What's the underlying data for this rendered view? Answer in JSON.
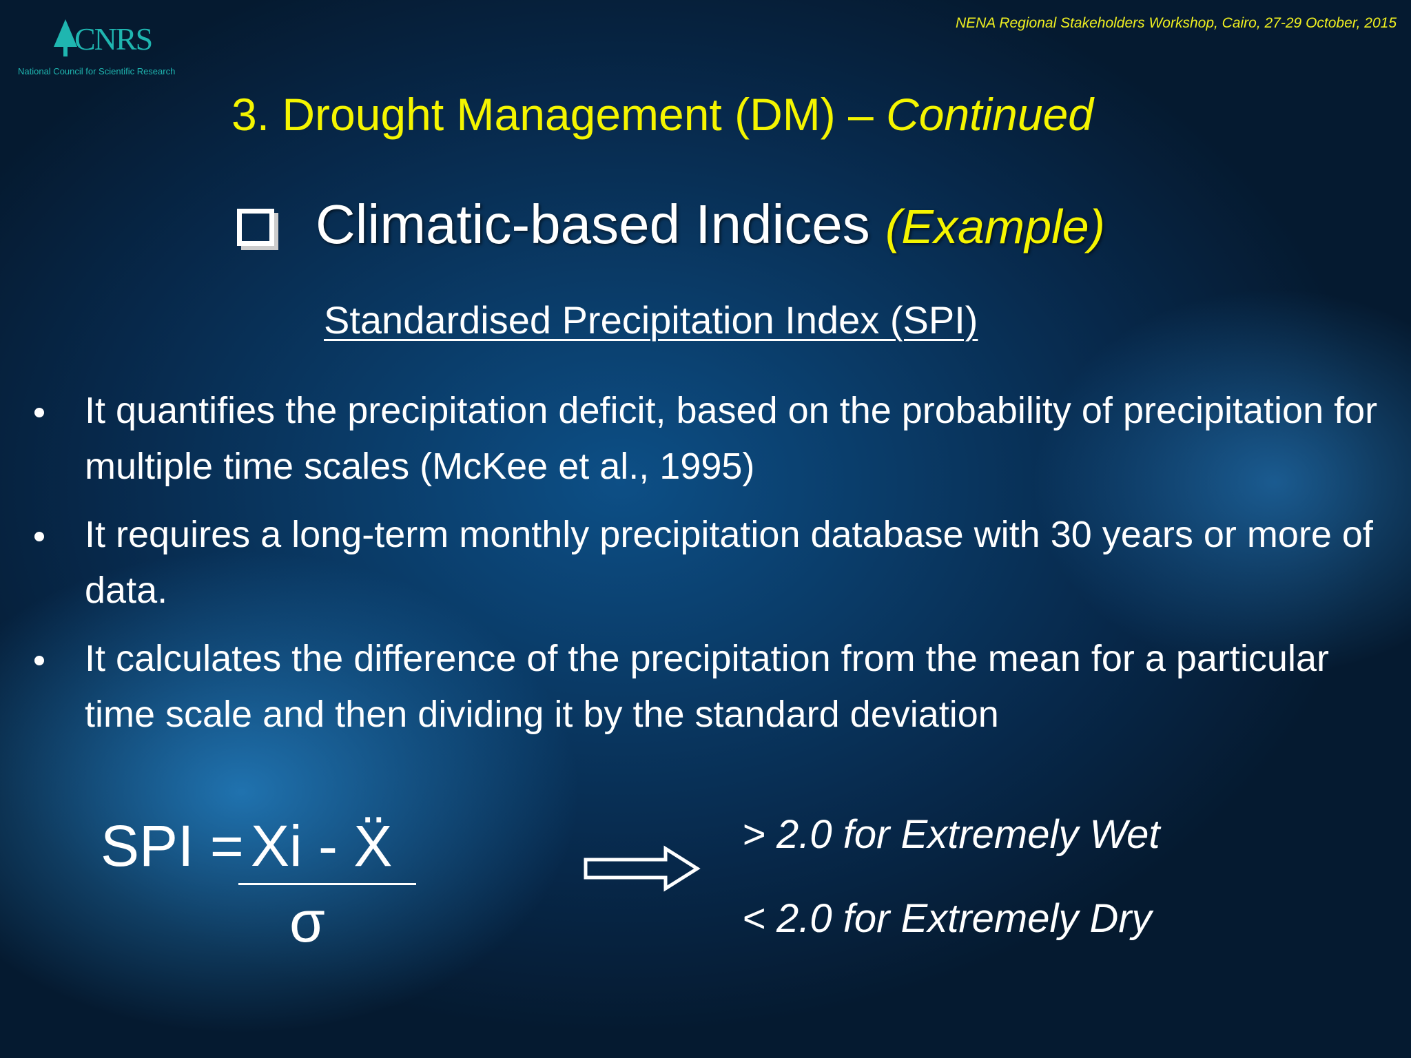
{
  "header": {
    "logo_text": "CNRS",
    "logo_subtitle": "National Council for Scientific Research",
    "event": "NENA Regional  Stakeholders Workshop, Cairo, 27-29 October, 2015"
  },
  "title": {
    "main": "3. Drought Management (DM) – ",
    "emphasis": "Continued"
  },
  "subtitle": {
    "main": "Climatic-based Indices",
    "emphasis": "(Example)"
  },
  "section_heading": "Standardised Precipitation Index (SPI)",
  "bullets": [
    "It quantifies the precipitation deficit, based on the probability of precipitation for multiple time scales (McKee et al., 1995)",
    "It requires a long-term monthly precipitation database with 30 years or more of data.",
    "It  calculates the difference of the precipitation from the mean for a particular time scale and then dividing it by the standard deviation"
  ],
  "formula": {
    "lhs": "SPI =",
    "numerator": "Xi - Ẍ",
    "denominator": "σ"
  },
  "results": [
    "> 2.0 for Extremely Wet",
    "< 2.0 for Extremely Dry"
  ]
}
